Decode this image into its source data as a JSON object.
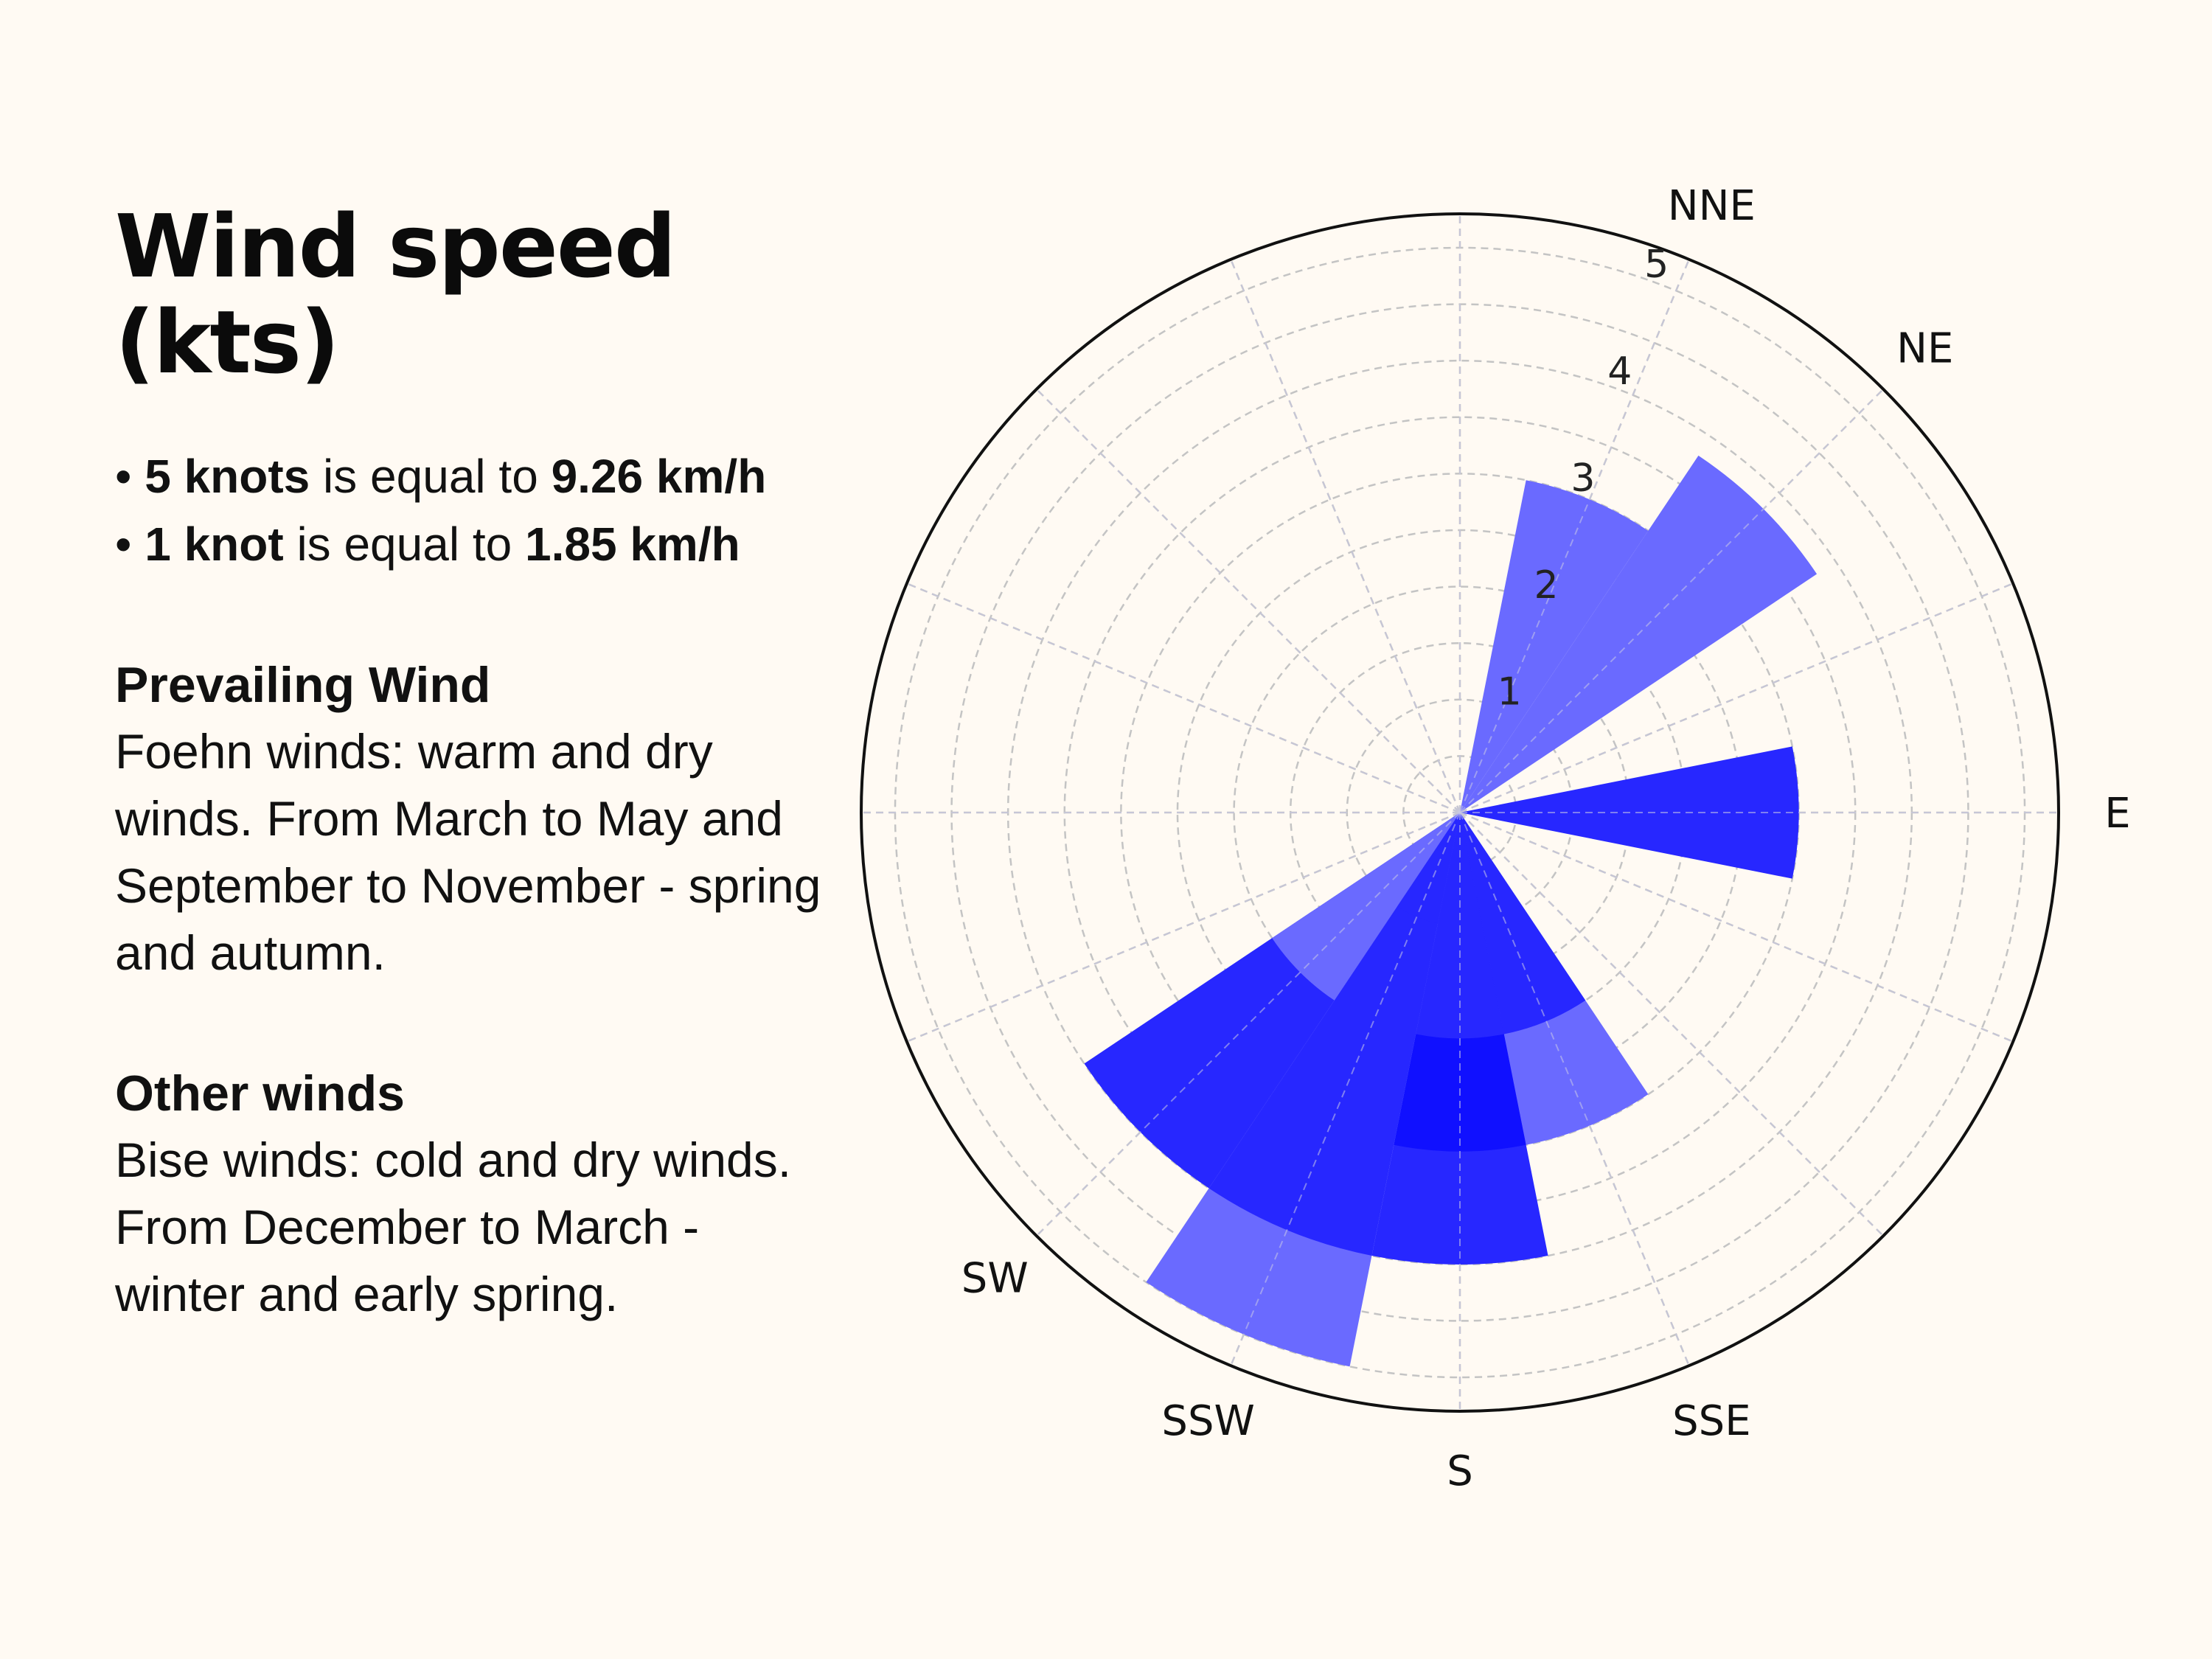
{
  "title": "Wind speed (kts)",
  "bullets": [
    {
      "bold1": "5 knots",
      "mid": " is equal to ",
      "bold2": "9.26 km/h"
    },
    {
      "bold1": "1 knot",
      "mid": " is equal to ",
      "bold2": "1.85 km/h"
    }
  ],
  "prevailing": {
    "heading": "Prevailing Wind",
    "text": "Foehn winds: warm and dry winds. From March to May and September to November - spring and autumn."
  },
  "other": {
    "heading": "Other winds",
    "text": "Bise winds: cold and dry winds. From December to March - winter and early spring."
  },
  "chart_data": {
    "type": "wind_rose",
    "title": "",
    "radial_ticks": [
      "1",
      "2",
      "3",
      "4",
      "5"
    ],
    "rmax": 5.3,
    "grid": true,
    "direction_labels": [
      "NNE",
      "NE",
      "E",
      "SSE",
      "S",
      "SSW",
      "SW"
    ],
    "colors": {
      "light": "#6a6aff",
      "mid": "#2727ff",
      "dark": "#1010ff"
    },
    "sectors": [
      {
        "dir": "NNE",
        "bearing": 22.5,
        "stacks": [
          {
            "value": 3.0,
            "color": "light"
          }
        ]
      },
      {
        "dir": "NE",
        "bearing": 45,
        "stacks": [
          {
            "value": 3.8,
            "color": "light"
          }
        ]
      },
      {
        "dir": "E",
        "bearing": 90,
        "stacks": [
          {
            "value": 3.0,
            "color": "mid"
          }
        ]
      },
      {
        "dir": "SSE",
        "bearing": 157.5,
        "stacks": [
          {
            "value": 2.0,
            "color": "mid"
          },
          {
            "value": 3.0,
            "color": "light"
          }
        ]
      },
      {
        "dir": "S",
        "bearing": 180,
        "stacks": [
          {
            "value": 2.0,
            "color": "mid"
          },
          {
            "value": 3.0,
            "color": "dark"
          },
          {
            "value": 4.0,
            "color": "mid"
          }
        ]
      },
      {
        "dir": "SSW",
        "bearing": 202.5,
        "stacks": [
          {
            "value": 1.0,
            "color": "mid"
          },
          {
            "value": 4.0,
            "color": "mid"
          },
          {
            "value": 5.0,
            "color": "light"
          }
        ]
      },
      {
        "dir": "SW",
        "bearing": 225,
        "stacks": [
          {
            "value": 2.0,
            "color": "light"
          },
          {
            "value": 4.0,
            "color": "mid"
          }
        ]
      }
    ]
  }
}
